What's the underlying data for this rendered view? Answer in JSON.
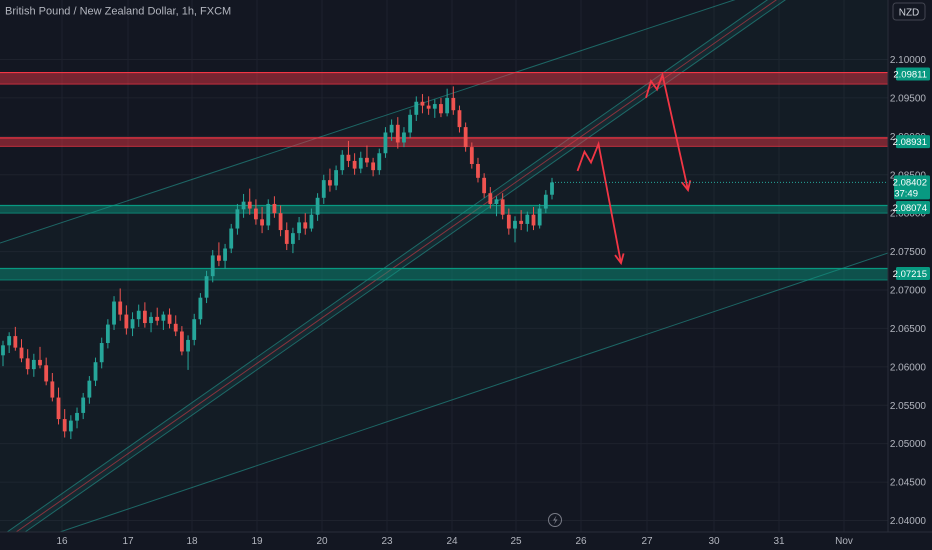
{
  "chart_data": {
    "type": "candlestick",
    "title": "British Pound / New Zealand Dollar, 1h, FXCM",
    "currency": "NZD",
    "ylim": [
      2.0395,
      2.1037
    ],
    "y_ticks": [
      "2.10000",
      "2.09500",
      "2.09000",
      "2.08500",
      "2.08000",
      "2.07500",
      "2.07000",
      "2.06500",
      "2.06000",
      "2.05500",
      "2.05000",
      "2.04500",
      "2.04000"
    ],
    "y_tick_values": [
      2.1,
      2.095,
      2.09,
      2.085,
      2.08,
      2.075,
      2.07,
      2.065,
      2.06,
      2.055,
      2.05,
      2.045,
      2.04
    ],
    "x_ticks": [
      "16",
      "17",
      "18",
      "19",
      "20",
      "23",
      "24",
      "25",
      "26",
      "27",
      "30",
      "31",
      "Nov"
    ],
    "zones": [
      {
        "name": "resistance-upper",
        "from": 2.0968,
        "to": 2.0983,
        "color": "#f23645",
        "label": "2.09811"
      },
      {
        "name": "resistance-lower",
        "from": 2.0887,
        "to": 2.0898,
        "color": "#f23645",
        "label": "2.08931"
      },
      {
        "name": "support-upper",
        "from": 2.08,
        "to": 2.081,
        "color": "#089981",
        "label": "2.08074"
      },
      {
        "name": "support-lower",
        "from": 2.0713,
        "to": 2.0728,
        "color": "#089981",
        "label": "2.07215"
      }
    ],
    "current_price": "2.08402",
    "countdown": "37:49",
    "last_close": 2.084,
    "candles": [
      [
        2.0615,
        2.0634,
        2.0601,
        2.0628
      ],
      [
        2.0628,
        2.0645,
        2.0618,
        2.064
      ],
      [
        2.064,
        2.0652,
        2.0621,
        2.0625
      ],
      [
        2.0625,
        2.0636,
        2.0606,
        2.0611
      ],
      [
        2.0611,
        2.0623,
        2.059,
        2.0597
      ],
      [
        2.0597,
        2.0617,
        2.0587,
        2.0609
      ],
      [
        2.0609,
        2.0626,
        2.0598,
        2.0602
      ],
      [
        2.0602,
        2.0612,
        2.0576,
        2.0581
      ],
      [
        2.0581,
        2.0592,
        2.0555,
        2.056
      ],
      [
        2.056,
        2.0573,
        2.0525,
        2.0532
      ],
      [
        2.0532,
        2.0545,
        2.0508,
        2.0516
      ],
      [
        2.0516,
        2.0537,
        2.0506,
        2.053
      ],
      [
        2.053,
        2.0547,
        2.052,
        2.054
      ],
      [
        2.054,
        2.0566,
        2.0532,
        2.056
      ],
      [
        2.056,
        2.0588,
        2.0552,
        2.0582
      ],
      [
        2.0582,
        2.0612,
        2.0575,
        2.0606
      ],
      [
        2.0606,
        2.0638,
        2.0598,
        2.0631
      ],
      [
        2.0631,
        2.0662,
        2.0624,
        2.0655
      ],
      [
        2.0655,
        2.0692,
        2.0648,
        2.0685
      ],
      [
        2.0685,
        2.0702,
        2.066,
        2.0668
      ],
      [
        2.0668,
        2.068,
        2.0642,
        2.065
      ],
      [
        2.065,
        2.0671,
        2.064,
        2.0662
      ],
      [
        2.0662,
        2.0681,
        2.0652,
        2.0673
      ],
      [
        2.0673,
        2.0684,
        2.0651,
        2.0657
      ],
      [
        2.0657,
        2.0671,
        2.0645,
        2.0665
      ],
      [
        2.0665,
        2.0677,
        2.0654,
        2.066
      ],
      [
        2.066,
        2.0672,
        2.0648,
        2.0668
      ],
      [
        2.0668,
        2.0676,
        2.065,
        2.0656
      ],
      [
        2.0656,
        2.0667,
        2.064,
        2.0646
      ],
      [
        2.0646,
        2.0653,
        2.0615,
        2.062
      ],
      [
        2.062,
        2.0641,
        2.0596,
        2.0635
      ],
      [
        2.0635,
        2.0669,
        2.0628,
        2.0662
      ],
      [
        2.0662,
        2.0696,
        2.0655,
        2.069
      ],
      [
        2.069,
        2.0725,
        2.0683,
        2.0718
      ],
      [
        2.0718,
        2.0752,
        2.071,
        2.0745
      ],
      [
        2.0745,
        2.0762,
        2.0731,
        2.0738
      ],
      [
        2.0738,
        2.076,
        2.0728,
        2.0754
      ],
      [
        2.0754,
        2.0786,
        2.0748,
        2.078
      ],
      [
        2.078,
        2.0812,
        2.0772,
        2.0805
      ],
      [
        2.0805,
        2.0825,
        2.0794,
        2.0815
      ],
      [
        2.0815,
        2.0832,
        2.0798,
        2.0806
      ],
      [
        2.0806,
        2.0818,
        2.0785,
        2.0792
      ],
      [
        2.0792,
        2.0808,
        2.0774,
        2.0784
      ],
      [
        2.0784,
        2.0818,
        2.0778,
        2.0812
      ],
      [
        2.0812,
        2.0822,
        2.0794,
        2.08
      ],
      [
        2.08,
        2.081,
        2.077,
        2.0778
      ],
      [
        2.0778,
        2.0788,
        2.0752,
        2.076
      ],
      [
        2.076,
        2.0781,
        2.0748,
        2.0774
      ],
      [
        2.0774,
        2.0795,
        2.0765,
        2.0788
      ],
      [
        2.0788,
        2.08,
        2.0772,
        2.078
      ],
      [
        2.078,
        2.0806,
        2.0776,
        2.0798
      ],
      [
        2.0798,
        2.0826,
        2.079,
        2.082
      ],
      [
        2.082,
        2.085,
        2.0812,
        2.0843
      ],
      [
        2.0843,
        2.0858,
        2.0828,
        2.0836
      ],
      [
        2.0836,
        2.0862,
        2.083,
        2.0856
      ],
      [
        2.0856,
        2.0882,
        2.085,
        2.0876
      ],
      [
        2.0876,
        2.0894,
        2.086,
        2.0868
      ],
      [
        2.0868,
        2.0878,
        2.085,
        2.0858
      ],
      [
        2.0858,
        2.088,
        2.0852,
        2.0872
      ],
      [
        2.0872,
        2.0888,
        2.086,
        2.0866
      ],
      [
        2.0866,
        2.0872,
        2.0848,
        2.0856
      ],
      [
        2.0856,
        2.0884,
        2.085,
        2.0878
      ],
      [
        2.0878,
        2.0912,
        2.0872,
        2.0905
      ],
      [
        2.0905,
        2.0922,
        2.0894,
        2.0915
      ],
      [
        2.0915,
        2.0925,
        2.0884,
        2.0892
      ],
      [
        2.0892,
        2.0912,
        2.0886,
        2.0905
      ],
      [
        2.0905,
        2.0935,
        2.0898,
        2.0928
      ],
      [
        2.0928,
        2.0952,
        2.092,
        2.0945
      ],
      [
        2.0945,
        2.0955,
        2.093,
        2.094
      ],
      [
        2.094,
        2.0952,
        2.0928,
        2.0936
      ],
      [
        2.0936,
        2.0948,
        2.0924,
        2.0942
      ],
      [
        2.0942,
        2.095,
        2.0925,
        2.093
      ],
      [
        2.093,
        2.0962,
        2.0926,
        2.095
      ],
      [
        2.095,
        2.0965,
        2.0928,
        2.0934
      ],
      [
        2.0934,
        2.094,
        2.0905,
        2.0912
      ],
      [
        2.0912,
        2.0918,
        2.088,
        2.0886
      ],
      [
        2.0886,
        2.0892,
        2.0858,
        2.0864
      ],
      [
        2.0864,
        2.0872,
        2.084,
        2.0846
      ],
      [
        2.0846,
        2.0852,
        2.082,
        2.0826
      ],
      [
        2.0826,
        2.0834,
        2.0806,
        2.0812
      ],
      [
        2.0812,
        2.0822,
        2.0796,
        2.0818
      ],
      [
        2.0818,
        2.0826,
        2.0792,
        2.0798
      ],
      [
        2.0798,
        2.0806,
        2.0772,
        2.078
      ],
      [
        2.078,
        2.0796,
        2.0762,
        2.079
      ],
      [
        2.079,
        2.0804,
        2.0778,
        2.0786
      ],
      [
        2.0786,
        2.0802,
        2.0776,
        2.0798
      ],
      [
        2.0798,
        2.0808,
        2.0778,
        2.0784
      ],
      [
        2.0784,
        2.0812,
        2.078,
        2.0806
      ],
      [
        2.0806,
        2.083,
        2.08,
        2.0824
      ],
      [
        2.0824,
        2.0846,
        2.0818,
        2.084
      ]
    ],
    "projection_paths": [
      [
        [
          577.5,
          2.0855
        ],
        [
          584.5,
          2.088
        ],
        [
          591,
          2.0866
        ],
        [
          598.5,
          2.089
        ],
        [
          621,
          2.0735
        ]
      ],
      [
        [
          646,
          2.095
        ],
        [
          651,
          2.0972
        ],
        [
          657,
          2.0961
        ],
        [
          662.5,
          2.098
        ],
        [
          688,
          2.083
        ]
      ]
    ]
  }
}
